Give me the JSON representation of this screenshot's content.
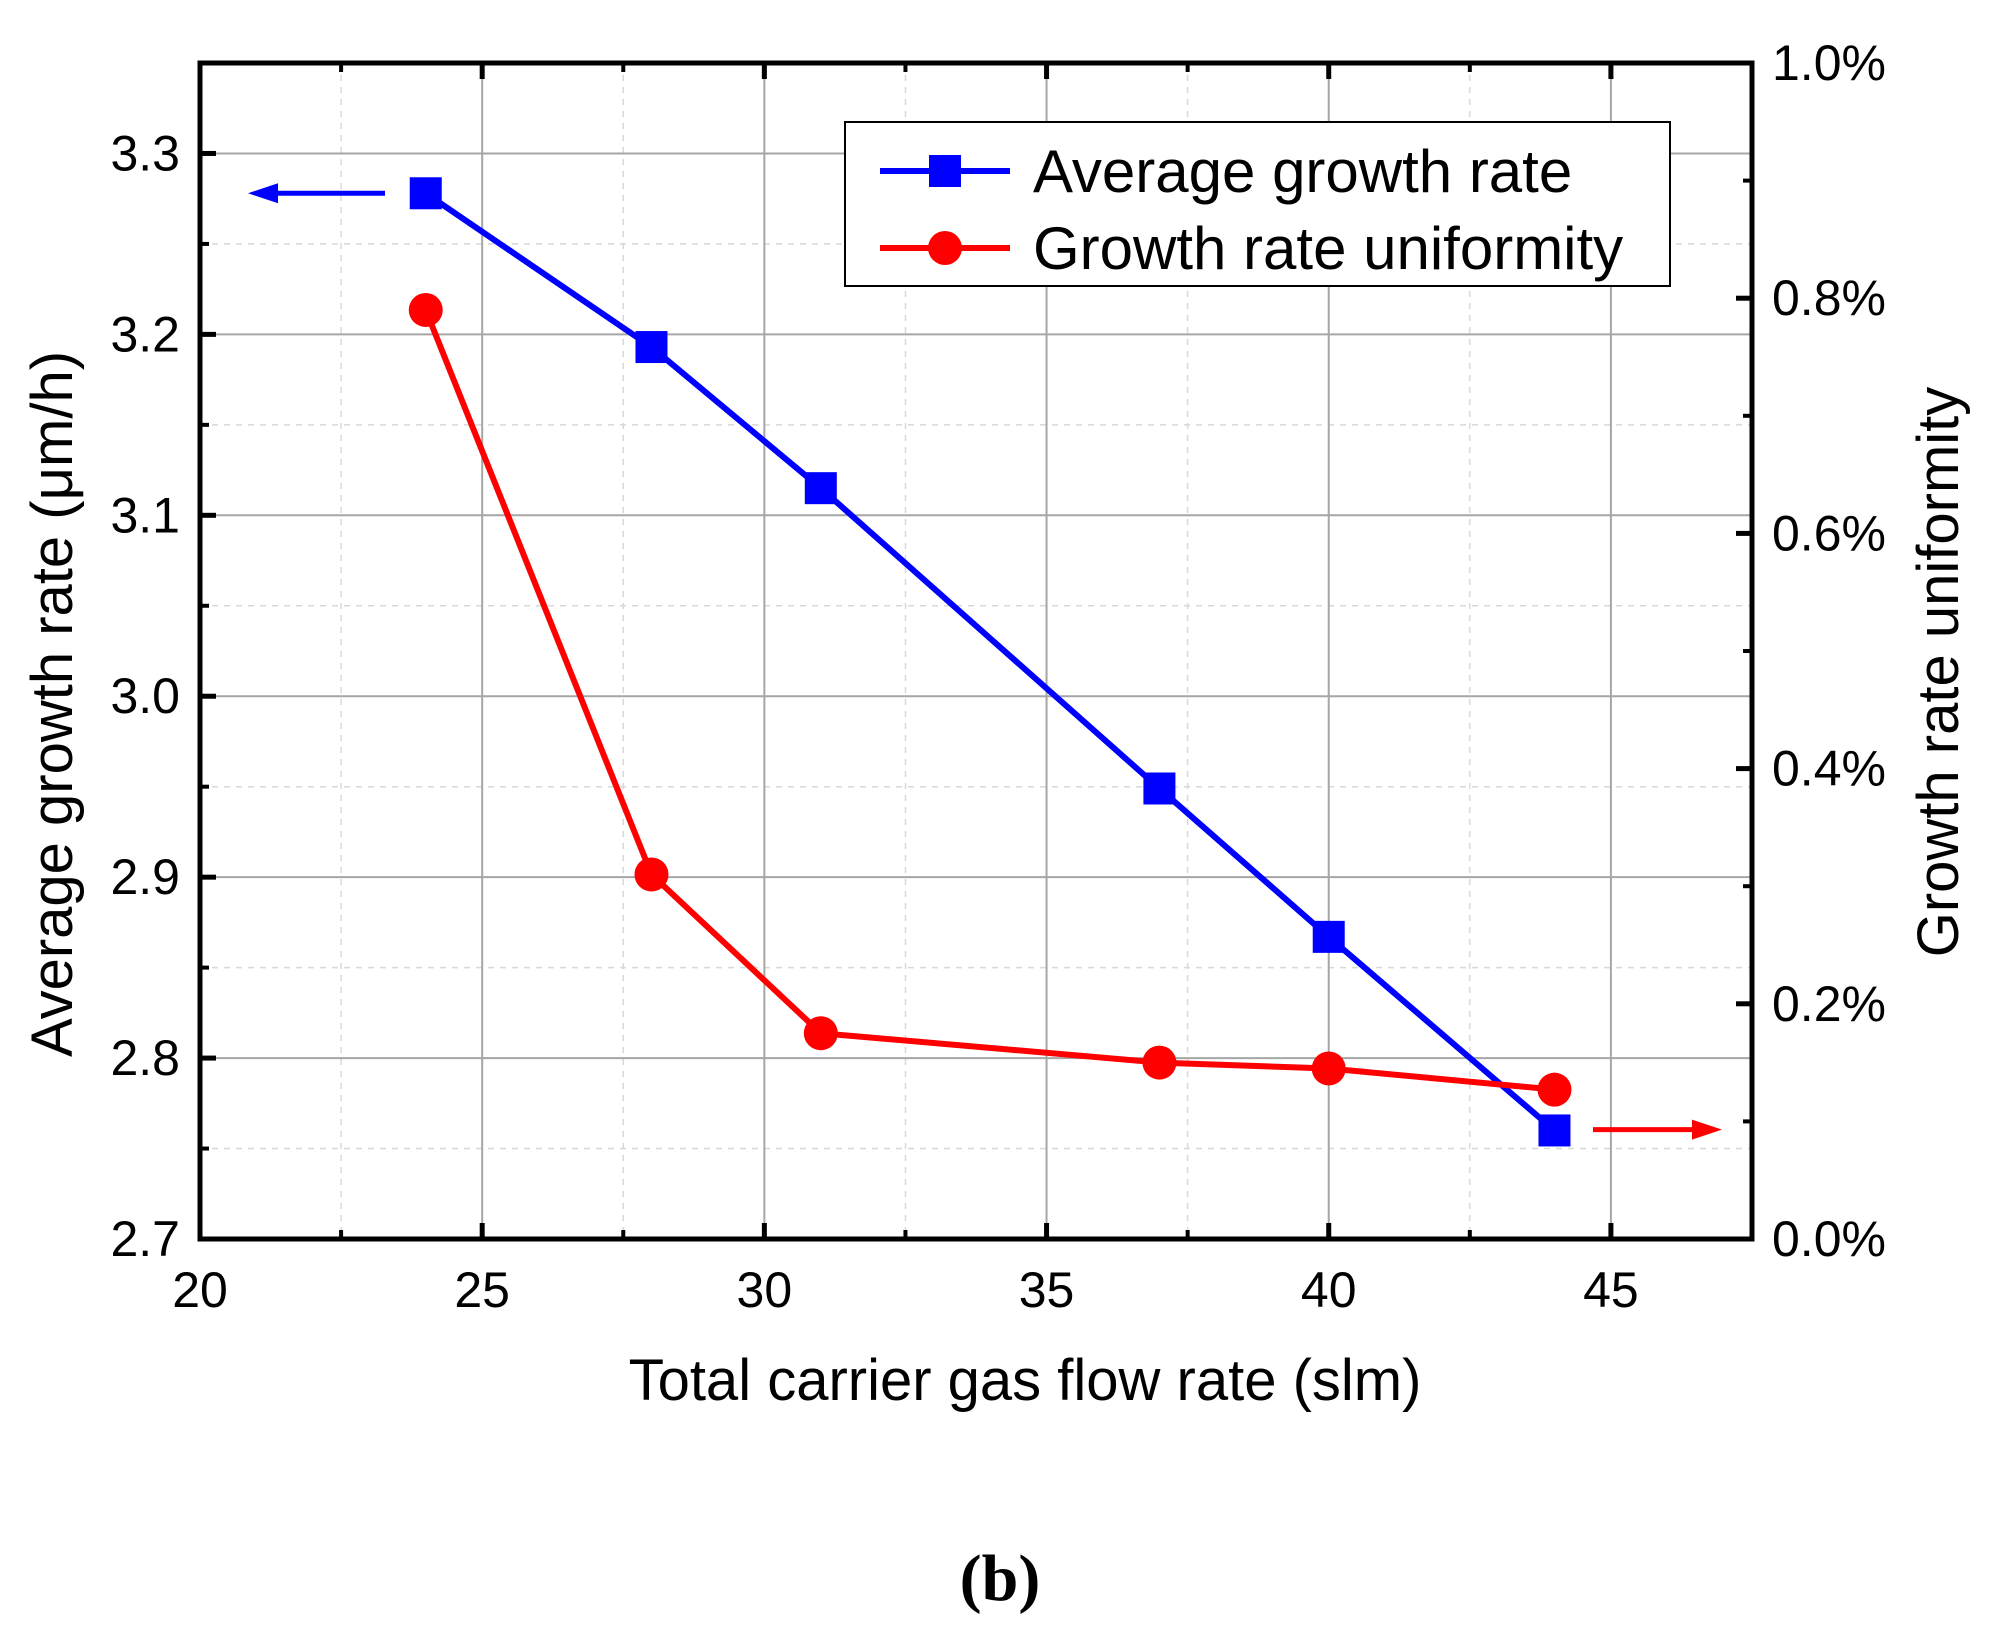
{
  "chart_data": {
    "type": "line",
    "panel_label": "(b)",
    "xlabel": "Total carrier gas flow rate  (slm)",
    "ylabel": "Average growth rate (μm/h)",
    "y2label": "Growth rate uniformity",
    "xlim": [
      20,
      47.5
    ],
    "ylim": [
      2.7,
      3.35
    ],
    "y2lim": [
      0,
      1.0
    ],
    "x_ticks": [
      20,
      25,
      30,
      35,
      40,
      45
    ],
    "y_ticks": [
      2.7,
      2.8,
      2.9,
      3.0,
      3.1,
      3.2,
      3.3
    ],
    "y_tick_labels": [
      "2.7",
      "2.8",
      "2.9",
      "3.0",
      "3.1",
      "3.2",
      "3.3"
    ],
    "y2_ticks": [
      0.0,
      0.2,
      0.4,
      0.6,
      0.8,
      1.0
    ],
    "y2_tick_labels": [
      "0.0%",
      "0.2%",
      "0.4%",
      "0.6%",
      "0.8%",
      "1.0%"
    ],
    "grid": true,
    "legend_position": "top-right",
    "series": [
      {
        "name": "Average growth rate",
        "axis": "left",
        "color": "#0000ff",
        "marker": "square",
        "x": [
          24,
          28,
          31,
          37,
          40,
          44
        ],
        "y": [
          3.278,
          3.193,
          3.115,
          2.949,
          2.867,
          2.76
        ]
      },
      {
        "name": "Growth rate uniformity",
        "axis": "right",
        "color": "#ff0000",
        "marker": "circle",
        "x": [
          24,
          28,
          31,
          37,
          40,
          44
        ],
        "y": [
          0.79,
          0.31,
          0.175,
          0.15,
          0.145,
          0.127
        ]
      }
    ],
    "annotations": [
      {
        "type": "arrow",
        "direction": "left",
        "points_to": "left axis",
        "series": "Average growth rate"
      },
      {
        "type": "arrow",
        "direction": "right",
        "points_to": "right axis",
        "series": "Growth rate uniformity"
      }
    ]
  }
}
